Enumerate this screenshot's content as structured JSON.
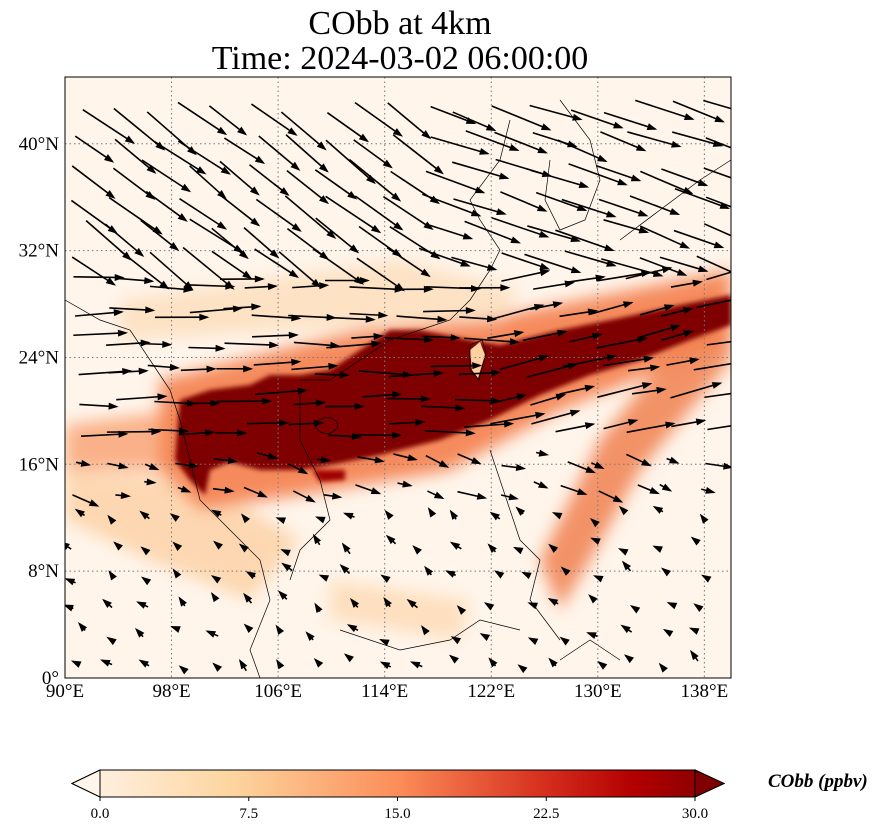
{
  "title": {
    "line1": "CObb at 4km",
    "line2": "Time: 2024-03-02 06:00:00"
  },
  "map": {
    "lon_range": [
      90,
      140
    ],
    "lat_range": [
      0,
      45
    ],
    "lon_ticks": [
      "90°E",
      "98°E",
      "106°E",
      "114°E",
      "122°E",
      "130°E",
      "138°E"
    ],
    "lat_ticks": [
      "0°",
      "8°N",
      "16°N",
      "24°N",
      "32°N",
      "40°N"
    ],
    "gridlines": "dotted"
  },
  "colorbar": {
    "label": "CObb (ppbv)",
    "ticks": [
      "0.0",
      "7.5",
      "15.0",
      "22.5",
      "30.0"
    ],
    "range": [
      0,
      30
    ],
    "colormap": [
      "#fff5eb",
      "#fdd49e",
      "#fc8d59",
      "#d7301f",
      "#b30000",
      "#7f0000"
    ],
    "extend": "both"
  }
}
